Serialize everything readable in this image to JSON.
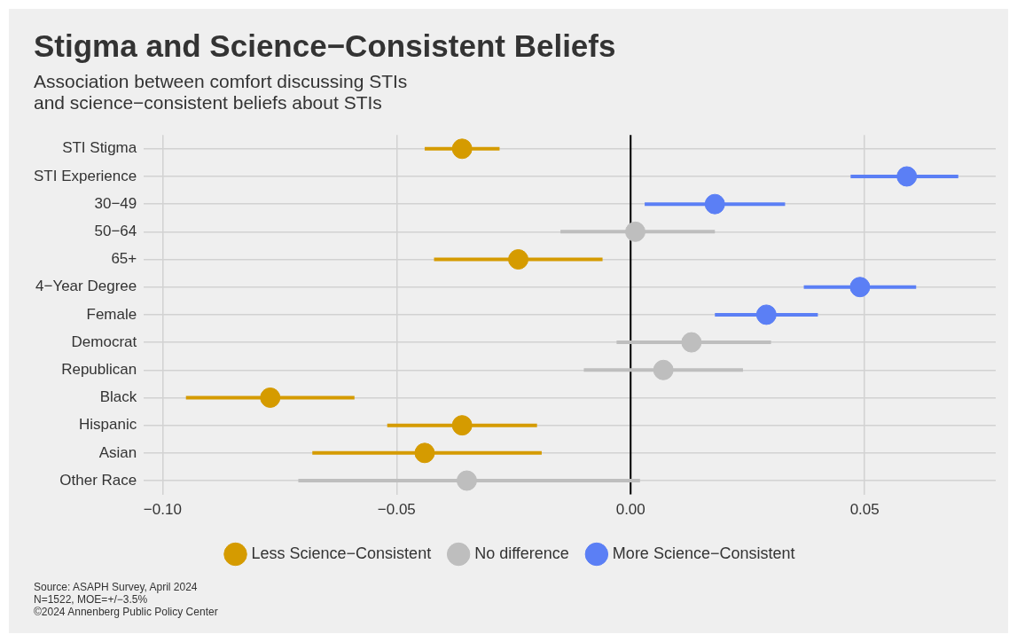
{
  "chart_data": {
    "type": "scatter",
    "orientation": "horizontal",
    "title": "Stigma and Science−Consistent Beliefs",
    "subtitle": "Association between comfort discussing STIs\nand science−consistent beliefs about STIs",
    "categories": [
      "STI Stigma",
      "STI Experience",
      "30−49",
      "50−64",
      "65+",
      "4−Year Degree",
      "Female",
      "Democrat",
      "Republican",
      "Black",
      "Hispanic",
      "Asian",
      "Other Race"
    ],
    "series": [
      {
        "name": "Less Science−Consistent",
        "color": "#d59b00",
        "values": [
          -0.036,
          null,
          null,
          null,
          -0.024,
          null,
          null,
          null,
          null,
          -0.077,
          -0.036,
          -0.044,
          null
        ],
        "errors": [
          [
            -0.044,
            -0.028
          ],
          null,
          null,
          null,
          [
            -0.042,
            -0.006
          ],
          null,
          null,
          null,
          null,
          [
            -0.095,
            -0.059
          ],
          [
            -0.052,
            -0.02
          ],
          [
            -0.068,
            -0.019
          ],
          null
        ]
      },
      {
        "name": "No difference",
        "color": "#bebebe",
        "values": [
          null,
          null,
          null,
          0.001,
          null,
          null,
          null,
          0.013,
          0.007,
          null,
          null,
          null,
          -0.035
        ],
        "errors": [
          null,
          null,
          null,
          [
            -0.015,
            0.018
          ],
          null,
          null,
          null,
          [
            -0.003,
            0.03
          ],
          [
            -0.01,
            0.024
          ],
          null,
          null,
          null,
          [
            -0.071,
            0.002
          ]
        ]
      },
      {
        "name": "More Science−Consistent",
        "color": "#5b7ff5",
        "values": [
          null,
          0.059,
          0.018,
          null,
          null,
          0.049,
          0.029,
          null,
          null,
          null,
          null,
          null,
          null
        ],
        "errors": [
          null,
          [
            0.047,
            0.07
          ],
          [
            0.003,
            0.033
          ],
          null,
          null,
          [
            0.037,
            0.061
          ],
          [
            0.018,
            0.04
          ],
          null,
          null,
          null,
          null,
          null,
          null
        ]
      }
    ],
    "xlim": [
      -0.104,
      0.078
    ],
    "xticks": [
      {
        "value": -0.1,
        "label": "−0.10"
      },
      {
        "value": -0.05,
        "label": "−0.05"
      },
      {
        "value": 0,
        "label": "0.00"
      },
      {
        "value": 0.05,
        "label": "0.05"
      }
    ],
    "ref_lines": [
      {
        "axis": "x",
        "value": 0,
        "color": "#000000"
      }
    ],
    "grid": true,
    "legend": "bottom",
    "marker": "circle",
    "annotations": [
      "Source: ASAPH Survey, April 2024",
      "N=1522, MOE=+/−3.5%",
      "©2024 Annenberg Public Policy Center"
    ]
  }
}
